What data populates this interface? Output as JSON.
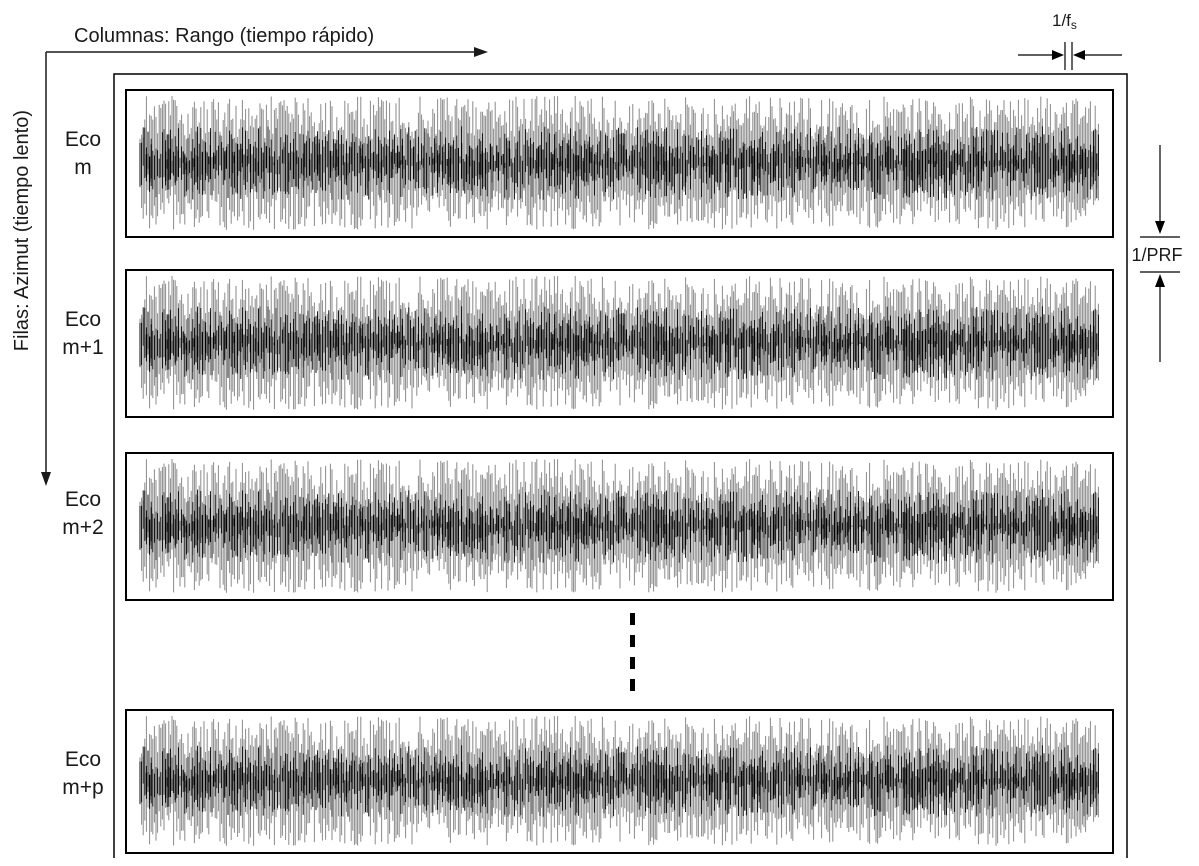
{
  "axes": {
    "columns_label": "Columnas: Rango (tiempo rápido)",
    "rows_label": "Filas: Azimut (tiempo lento)"
  },
  "sample_interval": {
    "prefix": "1/f",
    "subscript": "s"
  },
  "pulse_interval_label": "1/PRF",
  "echoes": [
    {
      "line1": "Eco",
      "line2": "m"
    },
    {
      "line1": "Eco",
      "line2": "m+1"
    },
    {
      "line1": "Eco",
      "line2": "m+2"
    },
    {
      "line1": "Eco",
      "line2": "m+p"
    }
  ],
  "colors": {
    "ink": "#000000",
    "signal_gray": "#8a8a8a",
    "background": "#ffffff"
  }
}
